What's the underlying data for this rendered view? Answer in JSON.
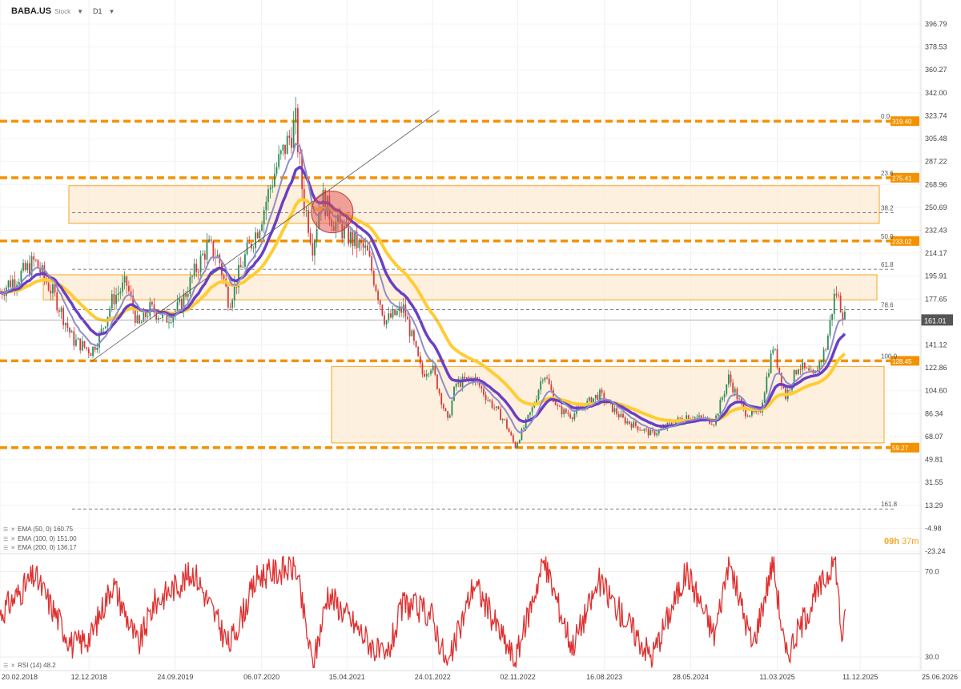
{
  "header": {
    "symbol": "BABA.US",
    "symbol_type": "Stock",
    "timeframe": "D1"
  },
  "indicator_legend": [
    {
      "label": "EMA (50, 0) 160.75",
      "color": "#8e8ec8"
    },
    {
      "label": "EMA (100, 0) 151.00",
      "color": "#6a3fc4"
    },
    {
      "label": "EMA (200, 0) 136.17",
      "color": "#ffcc33"
    }
  ],
  "rsi_legend": "RSI (14) 48.2",
  "countdown": {
    "hours": "09h",
    "minutes": "37m"
  },
  "colors": {
    "candle_up": "#2e8b57",
    "candle_down": "#d63b3b",
    "fib_line": "#f39200",
    "zone_fill": "#fdebd3",
    "zone_border": "#f5a623",
    "ema50": "#8e8ec8",
    "ema100": "#6a3fc4",
    "ema200": "#ffcc33",
    "rsi_line": "#e03030",
    "price_label_bg": "#555555",
    "crossover_marker": "#e05050"
  },
  "chart_data": [
    {
      "type": "candlestick",
      "title": "BABA.US D1",
      "y_ticks": [
        "396.79",
        "378.53",
        "360.27",
        "342.00",
        "323.74",
        "305.48",
        "287.22",
        "268.96",
        "250.69",
        "232.43",
        "214.17",
        "195.91",
        "177.65",
        "141.12",
        "122.86",
        "104.60",
        "86.34",
        "68.07",
        "49.81",
        "31.55",
        "13.29",
        "-4.98",
        "-23.24"
      ],
      "ylim": [
        -23.24,
        396.79
      ],
      "x_ticks": [
        "20.02.2018",
        "12.12.2018",
        "24.09.2019",
        "06.07.2020",
        "15.04.2021",
        "24.01.2022",
        "02.11.2022",
        "16.08.2023",
        "28.05.2024",
        "11.03.2025",
        "11.12.2025",
        "25.06.2026"
      ],
      "current_price": "161.01",
      "fib_levels": [
        {
          "ratio": "0.0",
          "price": "319.40"
        },
        {
          "ratio": "23.6",
          "price": "275.41"
        },
        {
          "ratio": "38.2",
          "price": ""
        },
        {
          "ratio": "50.0",
          "price": "233.02"
        },
        {
          "ratio": "61.8",
          "price": ""
        },
        {
          "ratio": "78.6",
          "price": ""
        },
        {
          "ratio": "100.0",
          "price": "128.45"
        },
        {
          "ratio": "161.8",
          "price": ""
        }
      ],
      "extra_level": {
        "price": "59.27"
      },
      "zones": [
        {
          "from": 238,
          "to": 268
        },
        {
          "from": 177,
          "to": 197
        },
        {
          "from": 63,
          "to": 124
        }
      ],
      "trendline": {
        "from": [
          "2018-12-20",
          128
        ],
        "to": [
          "2022-02-15",
          328
        ]
      },
      "price_path": [
        [
          "2018-02-20",
          183
        ],
        [
          "2018-03-20",
          190
        ],
        [
          "2018-05-15",
          200
        ],
        [
          "2018-06-15",
          208
        ],
        [
          "2018-08-20",
          180
        ],
        [
          "2018-10-20",
          145
        ],
        [
          "2018-12-20",
          136
        ],
        [
          "2019-01-20",
          150
        ],
        [
          "2019-03-01",
          178
        ],
        [
          "2019-04-15",
          190
        ],
        [
          "2019-05-25",
          155
        ],
        [
          "2019-07-01",
          170
        ],
        [
          "2019-08-25",
          162
        ],
        [
          "2019-10-10",
          172
        ],
        [
          "2019-11-25",
          198
        ],
        [
          "2020-01-10",
          220
        ],
        [
          "2020-02-15",
          210
        ],
        [
          "2020-03-20",
          175
        ],
        [
          "2020-05-10",
          210
        ],
        [
          "2020-06-25",
          235
        ],
        [
          "2020-08-20",
          280
        ],
        [
          "2020-10-27",
          318
        ],
        [
          "2020-11-20",
          260
        ],
        [
          "2020-12-23",
          220
        ],
        [
          "2021-01-20",
          260
        ],
        [
          "2021-03-01",
          240
        ],
        [
          "2021-05-01",
          225
        ],
        [
          "2021-06-20",
          215
        ],
        [
          "2021-08-20",
          160
        ],
        [
          "2021-10-20",
          170
        ],
        [
          "2021-12-20",
          118
        ],
        [
          "2022-01-20",
          125
        ],
        [
          "2022-03-15",
          80
        ],
        [
          "2022-04-10",
          110
        ],
        [
          "2022-06-10",
          115
        ],
        [
          "2022-07-20",
          100
        ],
        [
          "2022-09-20",
          80
        ],
        [
          "2022-10-24",
          60
        ],
        [
          "2022-12-20",
          90
        ],
        [
          "2023-01-27",
          120
        ],
        [
          "2023-03-15",
          90
        ],
        [
          "2023-05-01",
          85
        ],
        [
          "2023-07-30",
          102
        ],
        [
          "2023-10-15",
          82
        ],
        [
          "2024-01-20",
          70
        ],
        [
          "2024-03-01",
          75
        ],
        [
          "2024-05-15",
          85
        ],
        [
          "2024-08-15",
          80
        ],
        [
          "2024-10-01",
          115
        ],
        [
          "2024-11-20",
          88
        ],
        [
          "2025-01-10",
          85
        ],
        [
          "2025-02-25",
          140
        ],
        [
          "2025-04-08",
          100
        ],
        [
          "2025-05-20",
          125
        ],
        [
          "2025-07-10",
          115
        ],
        [
          "2025-08-20",
          140
        ],
        [
          "2025-09-20",
          185
        ],
        [
          "2025-10-10",
          170
        ],
        [
          "2025-10-24",
          161
        ]
      ],
      "rsi": {
        "legend": "RSI (14) 48.2",
        "y_ticks": [
          "70.0",
          "30.0"
        ],
        "ylim": [
          24,
          78
        ],
        "values": [
          [
            "2018-02-20",
            50
          ],
          [
            "2018-06-15",
            68
          ],
          [
            "2018-10-20",
            35
          ],
          [
            "2018-12-20",
            40
          ],
          [
            "2019-03-01",
            65
          ],
          [
            "2019-05-25",
            35
          ],
          [
            "2019-07-15",
            55
          ],
          [
            "2019-11-25",
            70
          ],
          [
            "2020-03-20",
            35
          ],
          [
            "2020-06-25",
            68
          ],
          [
            "2020-10-27",
            72
          ],
          [
            "2020-12-23",
            25
          ],
          [
            "2021-02-10",
            60
          ],
          [
            "2021-08-20",
            28
          ],
          [
            "2021-10-20",
            55
          ],
          [
            "2022-01-20",
            50
          ],
          [
            "2022-03-15",
            25
          ],
          [
            "2022-06-10",
            65
          ],
          [
            "2022-10-24",
            28
          ],
          [
            "2023-01-27",
            75
          ],
          [
            "2023-05-01",
            35
          ],
          [
            "2023-07-30",
            65
          ],
          [
            "2024-01-20",
            30
          ],
          [
            "2024-05-15",
            70
          ],
          [
            "2024-08-15",
            40
          ],
          [
            "2024-10-01",
            75
          ],
          [
            "2024-12-20",
            35
          ],
          [
            "2025-02-25",
            75
          ],
          [
            "2025-04-08",
            30
          ],
          [
            "2025-06-15",
            50
          ],
          [
            "2025-09-20",
            76
          ],
          [
            "2025-10-10",
            40
          ],
          [
            "2025-10-24",
            48
          ]
        ]
      }
    }
  ]
}
